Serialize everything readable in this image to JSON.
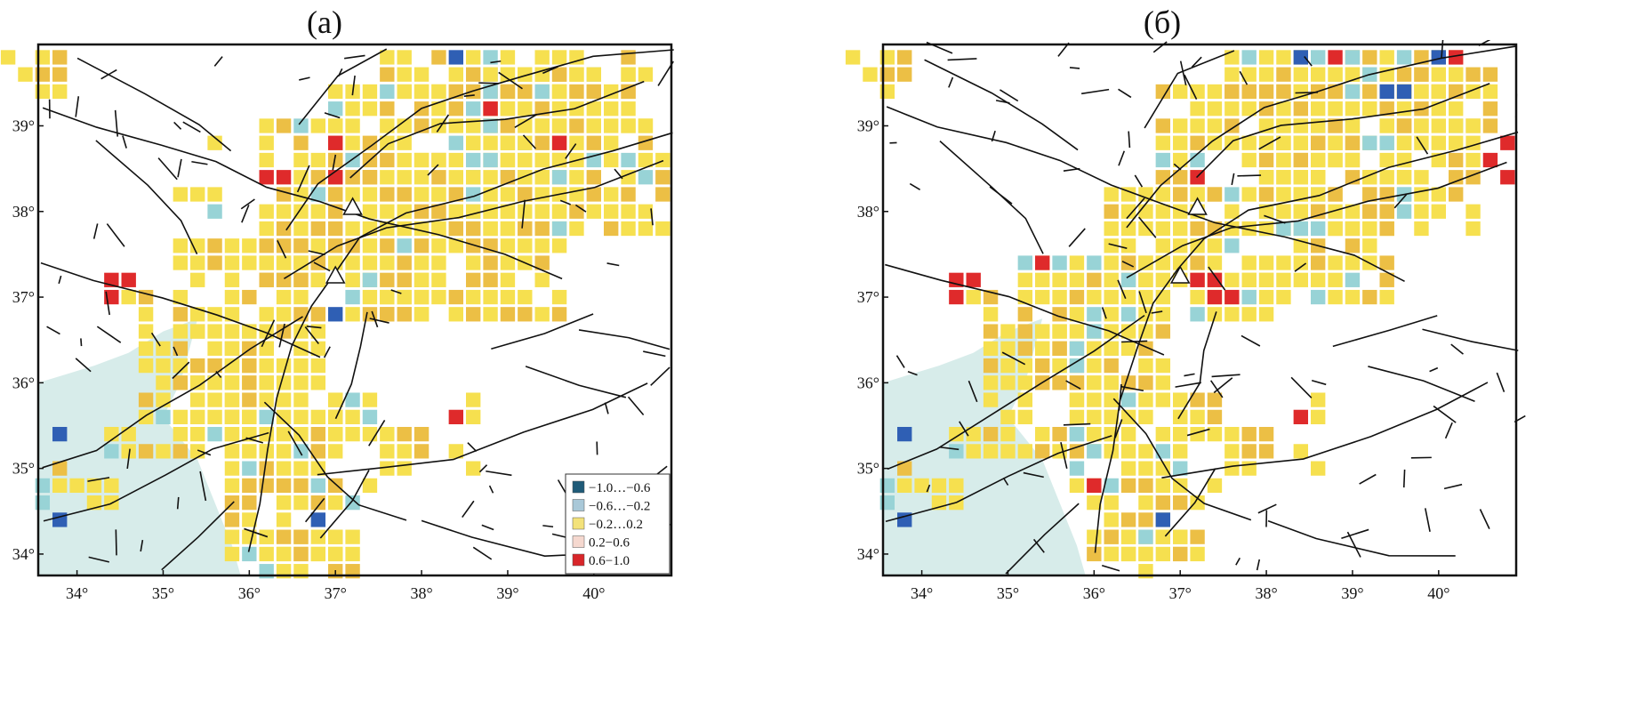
{
  "panels": [
    {
      "label": "(а)",
      "triangles": [
        [
          37.2,
          38.05
        ],
        [
          37.0,
          37.25
        ]
      ],
      "squares": [
        {
          "x": 33.2,
          "y": 39.8,
          "c": "yellow"
        },
        {
          "x": 33.4,
          "y": 39.6,
          "c": "yellow"
        },
        {
          "x": 33.6,
          "y": 39.8,
          "c": "yellow"
        },
        {
          "x": 33.8,
          "y": 39.8,
          "c": "orange"
        },
        {
          "x": 33.6,
          "y": 39.6,
          "c": "orange"
        },
        {
          "x": 33.8,
          "y": 39.6,
          "c": "orange"
        },
        {
          "x": 33.6,
          "y": 39.4,
          "c": "yellow"
        },
        {
          "x": 33.8,
          "y": 39.4,
          "c": "yellow"
        },
        {
          "x": 35.6,
          "y": 38.8,
          "c": "yellow"
        },
        {
          "x": 35.2,
          "y": 38.2,
          "c": "yellow"
        },
        {
          "x": 35.4,
          "y": 38.2,
          "c": "yellow"
        },
        {
          "x": 35.6,
          "y": 38.2,
          "c": "yellow"
        },
        {
          "x": 35.6,
          "y": 38.0,
          "c": "cyan"
        },
        {
          "x": 36.2,
          "y": 38.4,
          "c": "red"
        },
        {
          "x": 36.4,
          "y": 38.4,
          "c": "red"
        },
        {
          "x": 37.0,
          "y": 38.8,
          "c": "red"
        },
        {
          "x": 37.0,
          "y": 38.4,
          "c": "red"
        },
        {
          "x": 38.8,
          "y": 39.2,
          "c": "red"
        },
        {
          "x": 39.6,
          "y": 38.8,
          "c": "red"
        },
        {
          "x": 38.4,
          "y": 39.8,
          "c": "blue"
        },
        {
          "x": 34.4,
          "y": 37.2,
          "c": "red"
        },
        {
          "x": 34.6,
          "y": 37.2,
          "c": "red"
        },
        {
          "x": 34.4,
          "y": 37.0,
          "c": "red"
        },
        {
          "x": 34.6,
          "y": 37.0,
          "c": "yellow"
        },
        {
          "x": 34.8,
          "y": 37.0,
          "c": "orange"
        },
        {
          "x": 34.8,
          "y": 36.8,
          "c": "yellow"
        },
        {
          "x": 37.0,
          "y": 36.8,
          "c": "blue"
        },
        {
          "x": 33.8,
          "y": 35.4,
          "c": "blue"
        },
        {
          "x": 33.8,
          "y": 34.4,
          "c": "blue"
        },
        {
          "x": 36.8,
          "y": 34.4,
          "c": "blue"
        },
        {
          "x": 38.4,
          "y": 35.6,
          "c": "red"
        },
        {
          "x": 38.6,
          "y": 35.8,
          "c": "yellow"
        },
        {
          "x": 38.6,
          "y": 35.6,
          "c": "yellow"
        },
        {
          "x": 38.4,
          "y": 35.2,
          "c": "yellow"
        },
        {
          "x": 37.0,
          "y": 35.8,
          "c": "yellow"
        },
        {
          "x": 37.2,
          "y": 35.8,
          "c": "cyan"
        },
        {
          "x": 37.4,
          "y": 35.8,
          "c": "yellow"
        },
        {
          "x": 37.0,
          "y": 35.6,
          "c": "yellow"
        },
        {
          "x": 37.2,
          "y": 35.6,
          "c": "yellow"
        },
        {
          "x": 37.4,
          "y": 35.6,
          "c": "cyan"
        },
        {
          "x": 37.0,
          "y": 35.4,
          "c": "yellow"
        },
        {
          "x": 37.2,
          "y": 35.4,
          "c": "yellow"
        },
        {
          "x": 37.4,
          "y": 35.4,
          "c": "yellow"
        },
        {
          "x": 37.6,
          "y": 35.4,
          "c": "yellow"
        },
        {
          "x": 37.8,
          "y": 35.4,
          "c": "orange"
        },
        {
          "x": 38.0,
          "y": 35.4,
          "c": "orange"
        },
        {
          "x": 37.6,
          "y": 35.2,
          "c": "yellow"
        },
        {
          "x": 37.8,
          "y": 35.2,
          "c": "yellow"
        },
        {
          "x": 38.0,
          "y": 35.2,
          "c": "orange"
        },
        {
          "x": 37.6,
          "y": 35.0,
          "c": "yellow"
        },
        {
          "x": 37.8,
          "y": 35.0,
          "c": "yellow"
        },
        {
          "x": 37.4,
          "y": 34.8,
          "c": "yellow"
        },
        {
          "x": 37.2,
          "y": 34.6,
          "c": "cyan"
        },
        {
          "x": 38.6,
          "y": 35.0,
          "c": "yellow"
        },
        {
          "x": 33.6,
          "y": 34.8,
          "c": "cyan"
        },
        {
          "x": 33.6,
          "y": 34.6,
          "c": "cyan"
        },
        {
          "x": 33.8,
          "y": 35.0,
          "c": "orange"
        },
        {
          "x": 33.8,
          "y": 34.8,
          "c": "yellow"
        },
        {
          "x": 34.0,
          "y": 34.8,
          "c": "yellow"
        },
        {
          "x": 34.2,
          "y": 34.8,
          "c": "yellow"
        },
        {
          "x": 34.4,
          "y": 34.8,
          "c": "yellow"
        },
        {
          "x": 34.2,
          "y": 34.6,
          "c": "yellow"
        },
        {
          "x": 34.4,
          "y": 34.6,
          "c": "yellow"
        },
        {
          "x": 34.4,
          "y": 35.4,
          "c": "yellow"
        },
        {
          "x": 34.6,
          "y": 35.4,
          "c": "yellow"
        },
        {
          "x": 34.4,
          "y": 35.2,
          "c": "cyan"
        },
        {
          "x": 34.6,
          "y": 35.2,
          "c": "yellow"
        }
      ],
      "blocks": [
        {
          "x0": 37.0,
          "x1": 39.6,
          "y0": 38.2,
          "y1": 39.4,
          "seed": 3
        },
        {
          "x0": 38.0,
          "x1": 40.8,
          "y0": 37.8,
          "y1": 39.0,
          "seed": 7
        },
        {
          "x0": 37.6,
          "x1": 39.6,
          "y0": 36.8,
          "y1": 38.0,
          "seed": 11
        },
        {
          "x0": 36.2,
          "x1": 37.4,
          "y0": 37.2,
          "y1": 38.4,
          "seed": 5
        },
        {
          "x0": 35.2,
          "x1": 36.8,
          "y0": 36.0,
          "y1": 37.6,
          "seed": 13
        },
        {
          "x0": 34.8,
          "x1": 36.2,
          "y0": 35.2,
          "y1": 36.6,
          "seed": 17
        },
        {
          "x0": 35.8,
          "x1": 37.0,
          "y0": 34.0,
          "y1": 35.8,
          "seed": 19
        },
        {
          "x0": 37.6,
          "x1": 40.4,
          "y0": 39.4,
          "y1": 39.8,
          "seed": 23
        },
        {
          "x0": 38.8,
          "x1": 40.6,
          "y0": 39.0,
          "y1": 39.6,
          "seed": 29
        },
        {
          "x0": 36.2,
          "x1": 37.0,
          "y0": 38.6,
          "y1": 39.0,
          "seed": 31
        },
        {
          "x0": 37.2,
          "x1": 38.0,
          "y0": 36.8,
          "y1": 37.2,
          "seed": 37
        },
        {
          "x0": 36.2,
          "x1": 37.2,
          "y0": 33.8,
          "y1": 34.2,
          "seed": 41
        }
      ]
    },
    {
      "label": "(б)",
      "triangles": [
        [
          37.2,
          38.05
        ],
        [
          37.0,
          37.25
        ]
      ],
      "squares": [
        {
          "x": 33.2,
          "y": 39.8,
          "c": "yellow"
        },
        {
          "x": 33.4,
          "y": 39.6,
          "c": "yellow"
        },
        {
          "x": 33.6,
          "y": 39.8,
          "c": "yellow"
        },
        {
          "x": 33.8,
          "y": 39.8,
          "c": "orange"
        },
        {
          "x": 33.6,
          "y": 39.6,
          "c": "orange"
        },
        {
          "x": 33.8,
          "y": 39.6,
          "c": "orange"
        },
        {
          "x": 33.6,
          "y": 39.4,
          "c": "yellow"
        },
        {
          "x": 38.4,
          "y": 39.8,
          "c": "blue"
        },
        {
          "x": 38.6,
          "y": 39.8,
          "c": "cyan"
        },
        {
          "x": 38.8,
          "y": 39.8,
          "c": "red"
        },
        {
          "x": 39.0,
          "y": 39.8,
          "c": "cyan"
        },
        {
          "x": 40.0,
          "y": 39.8,
          "c": "blue"
        },
        {
          "x": 40.2,
          "y": 39.8,
          "c": "red"
        },
        {
          "x": 39.4,
          "y": 39.4,
          "c": "blue"
        },
        {
          "x": 39.6,
          "y": 39.4,
          "c": "blue"
        },
        {
          "x": 40.8,
          "y": 38.8,
          "c": "red"
        },
        {
          "x": 40.6,
          "y": 38.6,
          "c": "red"
        },
        {
          "x": 40.8,
          "y": 38.4,
          "c": "red"
        },
        {
          "x": 37.2,
          "y": 38.4,
          "c": "red"
        },
        {
          "x": 35.4,
          "y": 37.4,
          "c": "red"
        },
        {
          "x": 34.4,
          "y": 37.2,
          "c": "red"
        },
        {
          "x": 34.6,
          "y": 37.2,
          "c": "red"
        },
        {
          "x": 34.4,
          "y": 37.0,
          "c": "red"
        },
        {
          "x": 34.6,
          "y": 37.0,
          "c": "yellow"
        },
        {
          "x": 34.8,
          "y": 37.0,
          "c": "orange"
        },
        {
          "x": 34.8,
          "y": 36.8,
          "c": "yellow"
        },
        {
          "x": 37.2,
          "y": 37.2,
          "c": "red"
        },
        {
          "x": 37.4,
          "y": 37.2,
          "c": "red"
        },
        {
          "x": 37.4,
          "y": 37.0,
          "c": "red"
        },
        {
          "x": 37.6,
          "y": 37.0,
          "c": "red"
        },
        {
          "x": 37.2,
          "y": 36.8,
          "c": "cyan"
        },
        {
          "x": 33.8,
          "y": 35.4,
          "c": "blue"
        },
        {
          "x": 33.8,
          "y": 34.4,
          "c": "blue"
        },
        {
          "x": 36.8,
          "y": 34.4,
          "c": "blue"
        },
        {
          "x": 36.0,
          "y": 34.8,
          "c": "red"
        },
        {
          "x": 38.4,
          "y": 35.6,
          "c": "red"
        },
        {
          "x": 38.6,
          "y": 35.8,
          "c": "yellow"
        },
        {
          "x": 38.6,
          "y": 35.6,
          "c": "yellow"
        },
        {
          "x": 38.4,
          "y": 35.2,
          "c": "yellow"
        },
        {
          "x": 37.0,
          "y": 35.8,
          "c": "yellow"
        },
        {
          "x": 37.2,
          "y": 35.8,
          "c": "orange"
        },
        {
          "x": 37.4,
          "y": 35.8,
          "c": "orange"
        },
        {
          "x": 37.0,
          "y": 35.6,
          "c": "yellow"
        },
        {
          "x": 37.2,
          "y": 35.6,
          "c": "yellow"
        },
        {
          "x": 37.4,
          "y": 35.6,
          "c": "orange"
        },
        {
          "x": 37.0,
          "y": 35.4,
          "c": "yellow"
        },
        {
          "x": 37.2,
          "y": 35.4,
          "c": "yellow"
        },
        {
          "x": 37.4,
          "y": 35.4,
          "c": "yellow"
        },
        {
          "x": 37.6,
          "y": 35.4,
          "c": "yellow"
        },
        {
          "x": 37.8,
          "y": 35.4,
          "c": "orange"
        },
        {
          "x": 38.0,
          "y": 35.4,
          "c": "orange"
        },
        {
          "x": 37.6,
          "y": 35.2,
          "c": "yellow"
        },
        {
          "x": 37.8,
          "y": 35.2,
          "c": "orange"
        },
        {
          "x": 38.0,
          "y": 35.2,
          "c": "orange"
        },
        {
          "x": 37.6,
          "y": 35.0,
          "c": "yellow"
        },
        {
          "x": 37.8,
          "y": 35.0,
          "c": "yellow"
        },
        {
          "x": 37.4,
          "y": 34.8,
          "c": "yellow"
        },
        {
          "x": 37.2,
          "y": 34.6,
          "c": "yellow"
        },
        {
          "x": 38.6,
          "y": 35.0,
          "c": "yellow"
        },
        {
          "x": 33.6,
          "y": 34.8,
          "c": "cyan"
        },
        {
          "x": 33.6,
          "y": 34.6,
          "c": "cyan"
        },
        {
          "x": 33.8,
          "y": 35.0,
          "c": "orange"
        },
        {
          "x": 33.8,
          "y": 34.8,
          "c": "yellow"
        },
        {
          "x": 34.0,
          "y": 34.8,
          "c": "yellow"
        },
        {
          "x": 34.2,
          "y": 34.8,
          "c": "yellow"
        },
        {
          "x": 34.4,
          "y": 34.8,
          "c": "yellow"
        },
        {
          "x": 34.2,
          "y": 34.6,
          "c": "yellow"
        },
        {
          "x": 34.4,
          "y": 34.6,
          "c": "yellow"
        },
        {
          "x": 34.4,
          "y": 35.4,
          "c": "yellow"
        },
        {
          "x": 34.6,
          "y": 35.4,
          "c": "yellow"
        },
        {
          "x": 34.4,
          "y": 35.2,
          "c": "cyan"
        },
        {
          "x": 34.6,
          "y": 35.2,
          "c": "yellow"
        }
      ],
      "blocks": [
        {
          "x0": 36.8,
          "x1": 39.6,
          "y0": 38.2,
          "y1": 39.4,
          "seed": 43
        },
        {
          "x0": 38.0,
          "x1": 40.4,
          "y0": 37.8,
          "y1": 39.0,
          "seed": 47
        },
        {
          "x0": 37.6,
          "x1": 39.4,
          "y0": 37.0,
          "y1": 38.0,
          "seed": 53
        },
        {
          "x0": 36.2,
          "x1": 37.4,
          "y0": 37.2,
          "y1": 38.2,
          "seed": 59
        },
        {
          "x0": 35.2,
          "x1": 36.8,
          "y0": 36.0,
          "y1": 37.4,
          "seed": 61
        },
        {
          "x0": 34.8,
          "x1": 36.2,
          "y0": 35.2,
          "y1": 36.6,
          "seed": 67
        },
        {
          "x0": 35.8,
          "x1": 37.0,
          "y0": 34.0,
          "y1": 35.8,
          "seed": 71
        },
        {
          "x0": 37.6,
          "x1": 40.2,
          "y0": 39.4,
          "y1": 39.8,
          "seed": 73
        },
        {
          "x0": 38.8,
          "x1": 40.6,
          "y0": 39.0,
          "y1": 39.6,
          "seed": 79
        },
        {
          "x0": 37.2,
          "x1": 38.0,
          "y0": 36.8,
          "y1": 37.2,
          "seed": 83
        },
        {
          "x0": 36.2,
          "x1": 37.2,
          "y0": 33.8,
          "y1": 34.2,
          "seed": 89
        }
      ]
    }
  ],
  "x_ticks": [
    {
      "v": 34,
      "label": "34°"
    },
    {
      "v": 35,
      "label": "35°"
    },
    {
      "v": 36,
      "label": "36°"
    },
    {
      "v": 37,
      "label": "37°"
    },
    {
      "v": 38,
      "label": "38°"
    },
    {
      "v": 39,
      "label": "39°"
    },
    {
      "v": 40,
      "label": "40°"
    }
  ],
  "y_ticks": [
    {
      "v": 34,
      "label": "34°"
    },
    {
      "v": 35,
      "label": "35°"
    },
    {
      "v": 36,
      "label": "36°"
    },
    {
      "v": 37,
      "label": "37°"
    },
    {
      "v": 38,
      "label": "38°"
    },
    {
      "v": 39,
      "label": "39°"
    }
  ],
  "extent": {
    "lon": [
      33.55,
      40.9
    ],
    "lat": [
      33.75,
      39.95
    ]
  },
  "legend": [
    {
      "label": "−1.0…−0.6",
      "color": "#1f5b78"
    },
    {
      "label": "−0.6…−0.2",
      "color": "#a9c8d8"
    },
    {
      "label": "−0.2…0.2",
      "color": "#f3e27a"
    },
    {
      "label": "0.2−0.6",
      "color": "#f5d8cf"
    },
    {
      "label": "0.6−1.0",
      "color": "#d8262a"
    }
  ],
  "colors": {
    "yellow": "#f6e04f",
    "orange": "#ecbf45",
    "cyan": "#98d3d6",
    "blue": "#2f5fb4",
    "red": "#df2a2b",
    "sea": "#d7ecea",
    "fault": "#111111"
  }
}
